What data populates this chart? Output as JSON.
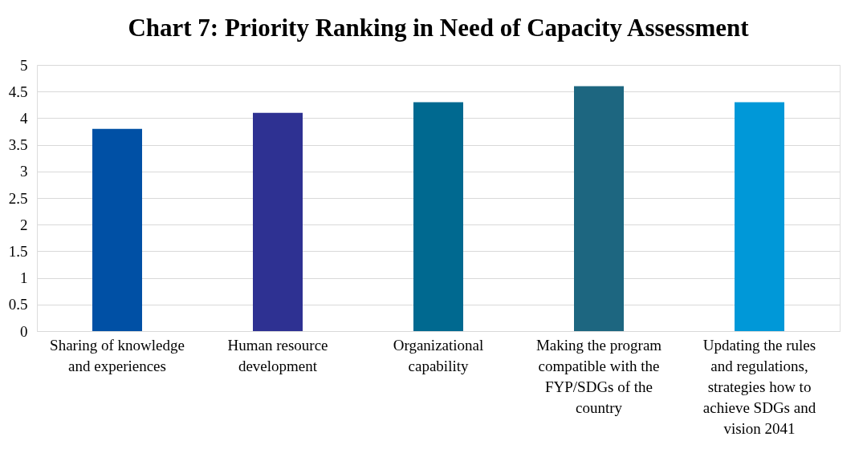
{
  "chart_data": {
    "type": "bar",
    "title": "Chart 7: Priority Ranking in Need of Capacity Assessment",
    "categories": [
      "Sharing of knowledge and experiences",
      "Human resource development",
      "Organizational capability",
      "Making the program compatible with the FYP/SDGs of the country",
      "Updating the rules and regulations, strategies how to achieve SDGs and vision 2041"
    ],
    "values": [
      3.8,
      4.1,
      4.3,
      4.6,
      4.3
    ],
    "colors": [
      "#0050a5",
      "#2e3192",
      "#006990",
      "#1d6680",
      "#0098d8"
    ],
    "ylim": [
      0,
      5
    ],
    "yticks": [
      0,
      0.5,
      1,
      1.5,
      2,
      2.5,
      3,
      3.5,
      4,
      4.5,
      5
    ],
    "grid": "y",
    "legend": false
  }
}
